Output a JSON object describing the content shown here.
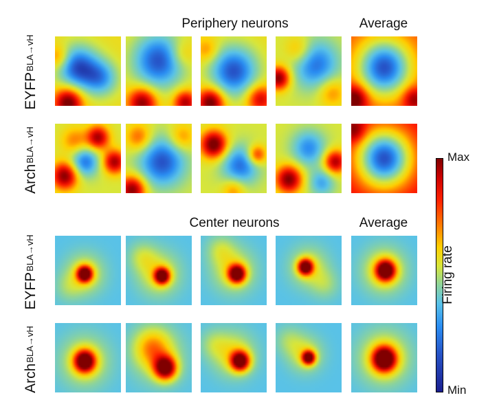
{
  "section_top": {
    "title": "Periphery neurons",
    "average_label": "Average"
  },
  "section_bottom": {
    "title": "Center neurons",
    "average_label": "Average"
  },
  "row_labels": [
    {
      "name": "EYFP",
      "superscript": "BLA→vH"
    },
    {
      "name": "Arch",
      "superscript": "BLA→vH"
    },
    {
      "name": "EYFP",
      "superscript": "BLA→vH"
    },
    {
      "name": "Arch",
      "superscript": "BLA→vH"
    }
  ],
  "colorbar": {
    "title": "Firing rate",
    "max_label": "Max",
    "min_label": "Min"
  },
  "colormap": [
    "#1b1f8f",
    "#2652c6",
    "#2a8df2",
    "#59c2e8",
    "#8ed49a",
    "#d8e63a",
    "#ffd000",
    "#ff7700",
    "#ff2200",
    "#cc0000",
    "#800000"
  ],
  "heatmaps": [
    {
      "row": 0,
      "col": 0,
      "base": 0.55,
      "blobs": [
        [
          0.35,
          0.45,
          0.22,
          -0.45
        ],
        [
          0.2,
          0.95,
          0.15,
          0.5
        ],
        [
          0.7,
          0.6,
          0.18,
          -0.3
        ],
        [
          0.05,
          0.3,
          0.12,
          0.2
        ]
      ]
    },
    {
      "row": 0,
      "col": 1,
      "base": 0.55,
      "blobs": [
        [
          0.5,
          0.35,
          0.28,
          -0.45
        ],
        [
          0.25,
          0.95,
          0.15,
          0.45
        ],
        [
          0.9,
          0.95,
          0.12,
          0.4
        ],
        [
          0.85,
          0.25,
          0.14,
          0.15
        ]
      ]
    },
    {
      "row": 0,
      "col": 2,
      "base": 0.55,
      "blobs": [
        [
          0.5,
          0.5,
          0.25,
          -0.45
        ],
        [
          0.15,
          0.95,
          0.14,
          0.5
        ],
        [
          0.9,
          0.9,
          0.14,
          0.35
        ],
        [
          0.1,
          0.2,
          0.12,
          0.15
        ]
      ]
    },
    {
      "row": 0,
      "col": 3,
      "base": 0.5,
      "blobs": [
        [
          0.05,
          0.6,
          0.12,
          0.5
        ],
        [
          0.6,
          0.4,
          0.25,
          -0.35
        ],
        [
          0.35,
          0.2,
          0.15,
          0.2
        ],
        [
          0.85,
          0.8,
          0.15,
          0.2
        ]
      ]
    },
    {
      "row": 0,
      "col": 4,
      "base": 0.75,
      "blobs": [
        [
          0.5,
          0.45,
          0.28,
          -0.65
        ],
        [
          0.05,
          0.9,
          0.14,
          0.35
        ],
        [
          0.95,
          0.9,
          0.12,
          0.25
        ]
      ]
    },
    {
      "row": 1,
      "col": 0,
      "base": 0.5,
      "blobs": [
        [
          0.15,
          0.75,
          0.14,
          0.5
        ],
        [
          0.65,
          0.2,
          0.12,
          0.45
        ],
        [
          0.9,
          0.55,
          0.12,
          0.45
        ],
        [
          0.45,
          0.55,
          0.15,
          -0.35
        ],
        [
          0.3,
          0.25,
          0.14,
          0.2
        ]
      ]
    },
    {
      "row": 1,
      "col": 1,
      "base": 0.5,
      "blobs": [
        [
          0.55,
          0.55,
          0.25,
          -0.4
        ],
        [
          0.1,
          0.95,
          0.14,
          0.5
        ],
        [
          0.2,
          0.2,
          0.14,
          0.25
        ],
        [
          0.85,
          0.2,
          0.14,
          0.2
        ]
      ]
    },
    {
      "row": 1,
      "col": 2,
      "base": 0.5,
      "blobs": [
        [
          0.2,
          0.3,
          0.14,
          0.55
        ],
        [
          0.6,
          0.6,
          0.2,
          -0.35
        ],
        [
          0.85,
          0.45,
          0.1,
          0.35
        ],
        [
          0.5,
          0.95,
          0.12,
          0.2
        ]
      ]
    },
    {
      "row": 1,
      "col": 3,
      "base": 0.5,
      "blobs": [
        [
          0.2,
          0.8,
          0.14,
          0.5
        ],
        [
          0.5,
          0.35,
          0.18,
          -0.3
        ],
        [
          0.9,
          0.55,
          0.12,
          0.45
        ],
        [
          0.7,
          0.85,
          0.14,
          -0.25
        ]
      ]
    },
    {
      "row": 1,
      "col": 4,
      "base": 0.85,
      "blobs": [
        [
          0.5,
          0.5,
          0.28,
          -0.75
        ],
        [
          0.05,
          0.1,
          0.12,
          0.2
        ]
      ]
    },
    {
      "row": 2,
      "col": 0,
      "base": 0.3,
      "blobs": [
        [
          0.45,
          0.55,
          0.08,
          0.7
        ],
        [
          0.45,
          0.55,
          0.2,
          0.25
        ],
        [
          0.2,
          0.75,
          0.15,
          0.1
        ]
      ]
    },
    {
      "row": 2,
      "col": 1,
      "base": 0.3,
      "blobs": [
        [
          0.55,
          0.58,
          0.08,
          0.7
        ],
        [
          0.5,
          0.55,
          0.22,
          0.25
        ],
        [
          0.25,
          0.3,
          0.15,
          0.15
        ]
      ]
    },
    {
      "row": 2,
      "col": 2,
      "base": 0.3,
      "blobs": [
        [
          0.55,
          0.55,
          0.09,
          0.7
        ],
        [
          0.5,
          0.5,
          0.22,
          0.25
        ],
        [
          0.3,
          0.2,
          0.15,
          0.15
        ]
      ]
    },
    {
      "row": 2,
      "col": 3,
      "base": 0.3,
      "blobs": [
        [
          0.45,
          0.45,
          0.08,
          0.7
        ],
        [
          0.5,
          0.45,
          0.2,
          0.22
        ],
        [
          0.75,
          0.7,
          0.15,
          0.12
        ]
      ]
    },
    {
      "row": 2,
      "col": 4,
      "base": 0.3,
      "blobs": [
        [
          0.52,
          0.5,
          0.1,
          0.68
        ],
        [
          0.5,
          0.5,
          0.22,
          0.3
        ]
      ]
    },
    {
      "row": 3,
      "col": 0,
      "base": 0.3,
      "blobs": [
        [
          0.45,
          0.55,
          0.11,
          0.7
        ],
        [
          0.45,
          0.55,
          0.25,
          0.25
        ]
      ]
    },
    {
      "row": 3,
      "col": 1,
      "base": 0.3,
      "blobs": [
        [
          0.6,
          0.65,
          0.12,
          0.7
        ],
        [
          0.4,
          0.35,
          0.2,
          0.3
        ],
        [
          0.5,
          0.5,
          0.28,
          0.15
        ]
      ]
    },
    {
      "row": 3,
      "col": 2,
      "base": 0.3,
      "blobs": [
        [
          0.6,
          0.55,
          0.1,
          0.7
        ],
        [
          0.5,
          0.45,
          0.22,
          0.25
        ],
        [
          0.2,
          0.3,
          0.15,
          0.12
        ]
      ]
    },
    {
      "row": 3,
      "col": 3,
      "base": 0.3,
      "blobs": [
        [
          0.5,
          0.5,
          0.07,
          0.7
        ],
        [
          0.45,
          0.45,
          0.18,
          0.22
        ],
        [
          0.2,
          0.25,
          0.15,
          0.12
        ]
      ]
    },
    {
      "row": 3,
      "col": 4,
      "base": 0.3,
      "blobs": [
        [
          0.5,
          0.52,
          0.12,
          0.72
        ],
        [
          0.5,
          0.5,
          0.26,
          0.3
        ]
      ]
    }
  ]
}
